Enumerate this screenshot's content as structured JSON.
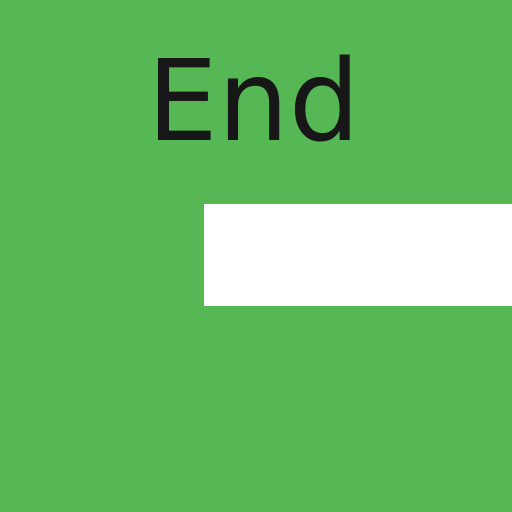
{
  "screen": {
    "title": "End"
  },
  "colors": {
    "background": "#55b854",
    "title_text": "#171717",
    "panel": "#ffffff"
  }
}
